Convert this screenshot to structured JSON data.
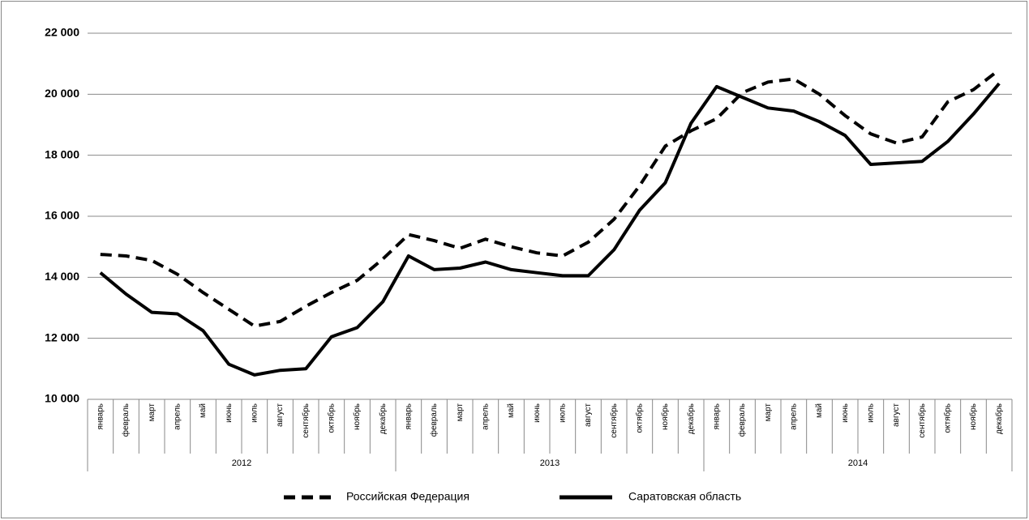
{
  "chart_data": {
    "type": "line",
    "categories": [
      "январь",
      "февраль",
      "март",
      "апрель",
      "май",
      "июнь",
      "июль",
      "август",
      "сентябрь",
      "октябрь",
      "ноябрь",
      "декабрь",
      "январь",
      "февраль",
      "март",
      "апрель",
      "май",
      "июнь",
      "июль",
      "август",
      "сентябрь",
      "октябрь",
      "ноябрь",
      "декабрь",
      "январь",
      "февраль",
      "март",
      "апрель",
      "май",
      "июнь",
      "июль",
      "август",
      "сентябрь",
      "октябрь",
      "ноябрь",
      "декабрь"
    ],
    "x_groups": [
      "2012",
      "2013",
      "2014"
    ],
    "series": [
      {
        "name": "Российская Федерация",
        "color": "#000000",
        "line_style": "dashed",
        "values": [
          14750,
          14700,
          14550,
          14100,
          13500,
          12950,
          12400,
          12550,
          13050,
          13500,
          13900,
          14600,
          15400,
          15200,
          14950,
          15250,
          15000,
          14800,
          14700,
          15150,
          15900,
          17000,
          18300,
          18800,
          19200,
          20050,
          20400,
          20500,
          20000,
          19300,
          18700,
          18400,
          18600,
          19750,
          20150,
          20800
        ]
      },
      {
        "name": "Саратовская область",
        "color": "#000000",
        "line_style": "solid",
        "values": [
          14150,
          13450,
          12850,
          12800,
          12250,
          11150,
          10800,
          10950,
          11000,
          12050,
          12350,
          13200,
          14700,
          14250,
          14300,
          14500,
          14250,
          14150,
          14050,
          14050,
          14900,
          16200,
          17100,
          19050,
          20250,
          19900,
          19550,
          19450,
          19100,
          18650,
          17700,
          17750,
          17800,
          18450,
          19350,
          20350
        ]
      }
    ],
    "ylim": [
      10000,
      22000
    ],
    "yticks": [
      {
        "value": 10000,
        "label": "10 000"
      },
      {
        "value": 12000,
        "label": "12 000"
      },
      {
        "value": 14000,
        "label": "14 000"
      },
      {
        "value": 16000,
        "label": "16 000"
      },
      {
        "value": 18000,
        "label": "18 000"
      },
      {
        "value": 20000,
        "label": "20 000"
      },
      {
        "value": 22000,
        "label": "22 000"
      }
    ],
    "grid": true,
    "legend": "bottom"
  }
}
